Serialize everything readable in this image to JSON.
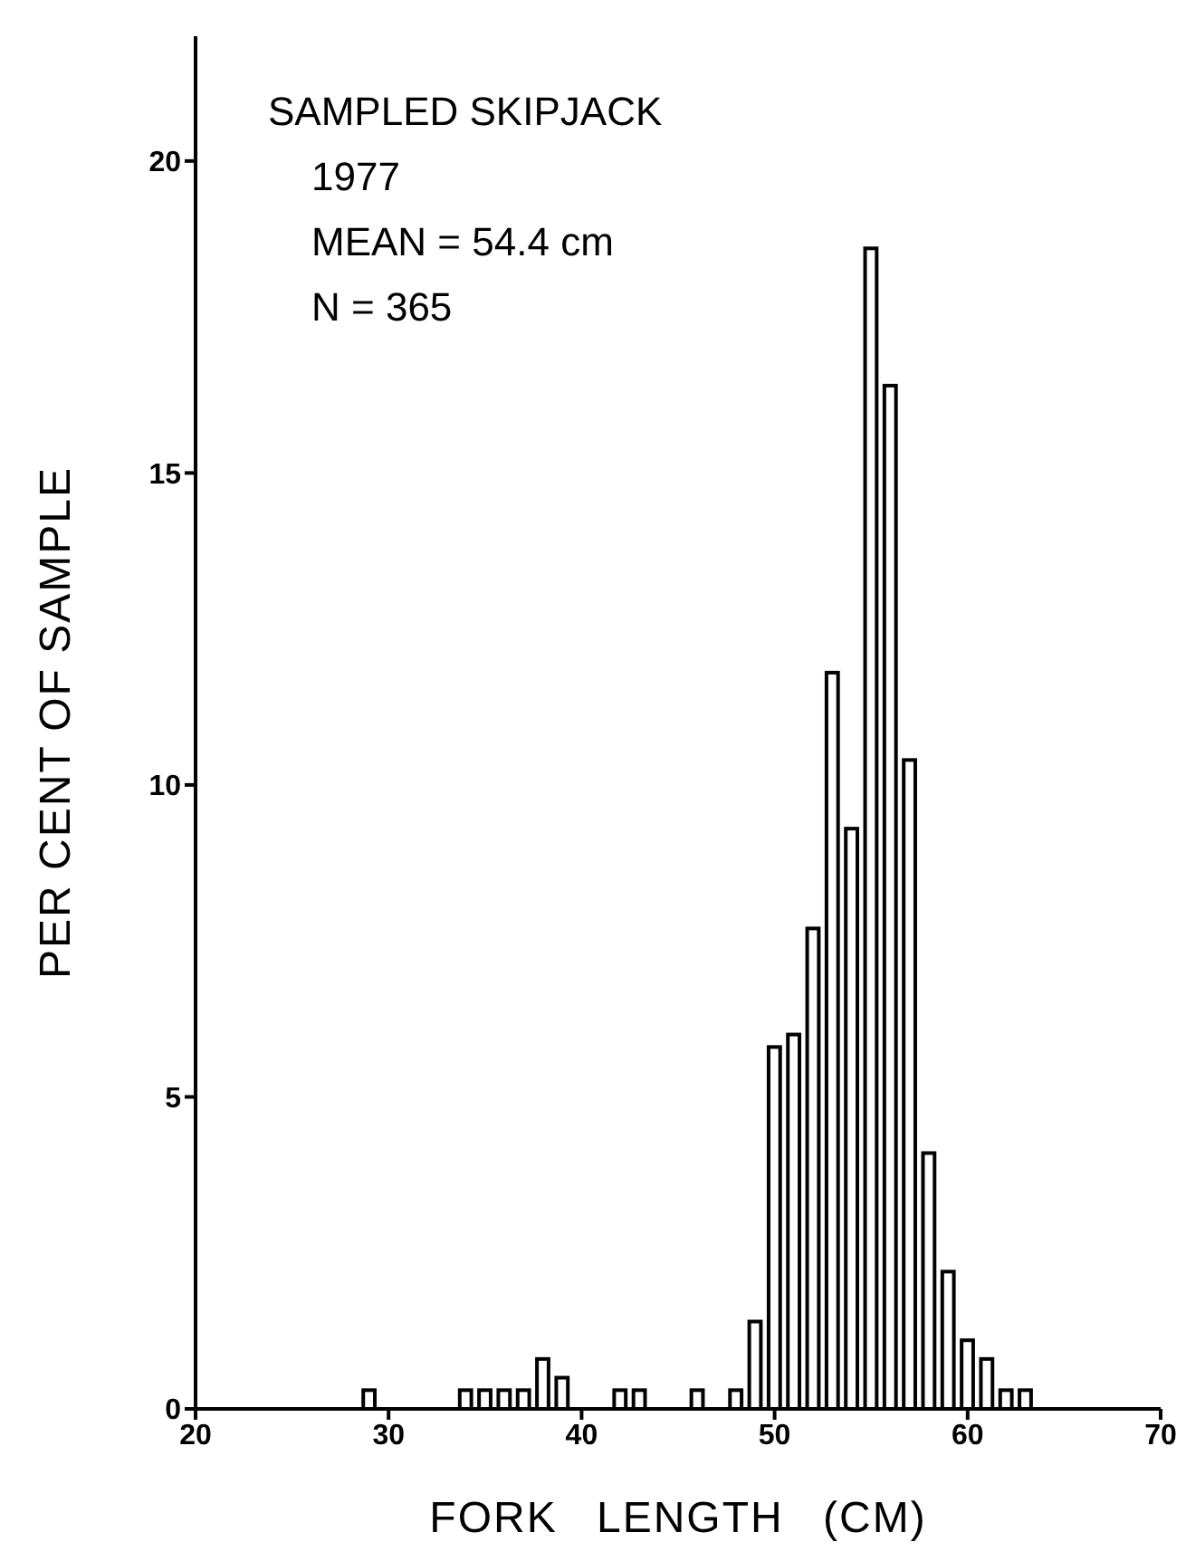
{
  "chart_data": {
    "type": "histogram",
    "title": "SAMPLED SKIPJACK",
    "subtitle": "1977",
    "annotations": [
      "MEAN = 54.4 cm",
      "N = 365"
    ],
    "xlabel": "FORK LENGTH (CM)",
    "ylabel": "PER CENT OF SAMPLE",
    "bins": [
      28.5,
      29.5,
      30.5,
      31.5,
      32.5,
      33.5,
      34.5,
      35.5,
      36.5,
      37.5,
      38.5,
      39.5,
      40.5,
      41.5,
      42.5,
      43.5,
      44.5,
      45.5,
      46.5,
      47.5,
      48.5,
      49.5,
      50.5,
      51.5,
      52.5,
      53.5,
      54.5,
      55.5,
      56.5,
      57.5,
      58.5,
      59.5,
      60.5,
      61.5,
      62.5,
      63.5
    ],
    "values": [
      0.3,
      0,
      0,
      0,
      0,
      0.3,
      0.3,
      0.3,
      0.3,
      0.8,
      0.5,
      0,
      0,
      0.3,
      0.3,
      0,
      0,
      0.3,
      0,
      0.3,
      1.4,
      5.8,
      6.0,
      7.7,
      11.8,
      9.3,
      18.6,
      16.4,
      10.4,
      4.1,
      2.2,
      1.1,
      0.8,
      0.3,
      0.3
    ],
    "color": "#000000",
    "xlim": [
      20,
      70
    ],
    "xticks": [
      20,
      30,
      40,
      50,
      60,
      70
    ],
    "ylim": [
      0,
      22
    ],
    "yticks": [
      0,
      5,
      10,
      15,
      20
    ]
  }
}
